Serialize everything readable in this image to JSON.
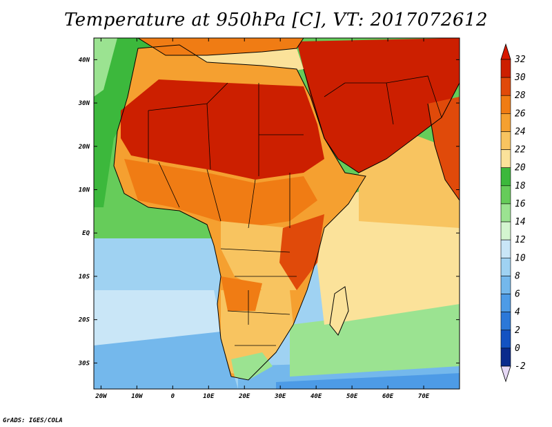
{
  "title": "Temperature at 950hPa [C], VT: 2017072612",
  "credit": "GrADS: IGES/COLA",
  "map": {
    "lon_labels": [
      "20W",
      "10W",
      "0",
      "10E",
      "20E",
      "30E",
      "40E",
      "50E",
      "60E",
      "70E"
    ],
    "lon_values": [
      -20,
      -10,
      0,
      10,
      20,
      30,
      40,
      50,
      60,
      70
    ],
    "lat_labels": [
      "40N",
      "30N",
      "20N",
      "10N",
      "EQ",
      "10S",
      "20S",
      "30S"
    ],
    "lat_values": [
      40,
      30,
      20,
      10,
      0,
      -10,
      -20,
      -30
    ],
    "lon_range": [
      -22,
      80
    ],
    "lat_range": [
      -36,
      45
    ]
  },
  "colorbar": {
    "labels": [
      "32",
      "30",
      "28",
      "26",
      "24",
      "22",
      "20",
      "18",
      "16",
      "14",
      "12",
      "10",
      "8",
      "6",
      "4",
      "2",
      "0",
      "-2"
    ],
    "colors": [
      "#cc1f00",
      "#e04a0a",
      "#f07c14",
      "#f5a030",
      "#f8c460",
      "#fbe29a",
      "#3cb83c",
      "#66cc5a",
      "#9be391",
      "#d4f5d0",
      "#c9e6f7",
      "#9fd2f2",
      "#74b8ec",
      "#4d9be6",
      "#2b78d8",
      "#1352c2",
      "#0a2a8c"
    ],
    "top_color": "#d81800",
    "bottom_color": "#e6d8f5"
  }
}
